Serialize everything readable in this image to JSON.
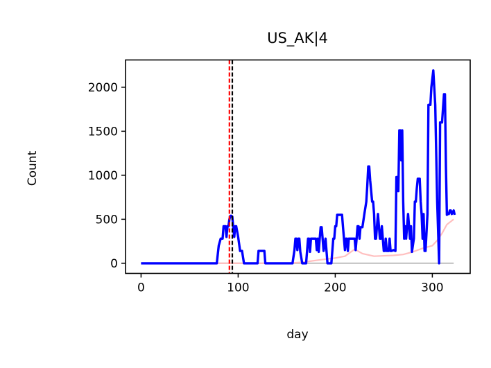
{
  "chart_data": {
    "type": "line",
    "title": "US_AK|4",
    "xlabel": "day",
    "ylabel": "Count",
    "xlim": [
      -16,
      339
    ],
    "ylim": [
      -115,
      2310
    ],
    "xticks": [
      0,
      100,
      200,
      300
    ],
    "yticks": [
      0,
      500,
      1000,
      1500,
      2000
    ],
    "grid": false,
    "vlines": [
      {
        "x": 91,
        "color": "#ff0000",
        "style": "dashed"
      },
      {
        "x": 94,
        "color": "#000000",
        "style": "dashed"
      }
    ],
    "series": [
      {
        "color": "#c8c8c8",
        "points": [
          [
            0,
            0
          ],
          [
            322,
            0
          ]
        ]
      },
      {
        "color": "#ffbfbf",
        "points": [
          [
            0,
            0
          ],
          [
            150,
            0
          ],
          [
            165,
            10
          ],
          [
            185,
            40
          ],
          [
            200,
            60
          ],
          [
            210,
            80
          ],
          [
            215,
            120
          ],
          [
            220,
            160
          ],
          [
            228,
            110
          ],
          [
            240,
            80
          ],
          [
            260,
            90
          ],
          [
            270,
            100
          ],
          [
            280,
            130
          ],
          [
            290,
            170
          ],
          [
            300,
            200
          ],
          [
            305,
            260
          ],
          [
            310,
            340
          ],
          [
            315,
            440
          ],
          [
            322,
            500
          ]
        ]
      },
      {
        "color": "#0000ff",
        "points": [
          [
            0,
            0
          ],
          [
            78,
            0
          ],
          [
            80,
            200
          ],
          [
            82,
            280
          ],
          [
            84,
            280
          ],
          [
            85,
            420
          ],
          [
            87,
            420
          ],
          [
            88,
            300
          ],
          [
            89,
            420
          ],
          [
            90,
            420
          ],
          [
            91,
            500
          ],
          [
            92,
            540
          ],
          [
            93,
            540
          ],
          [
            94,
            530
          ],
          [
            95,
            400
          ],
          [
            96,
            300
          ],
          [
            97,
            420
          ],
          [
            98,
            420
          ],
          [
            100,
            300
          ],
          [
            102,
            140
          ],
          [
            104,
            140
          ],
          [
            106,
            0
          ],
          [
            120,
            0
          ],
          [
            121,
            140
          ],
          [
            127,
            140
          ],
          [
            128,
            0
          ],
          [
            156,
            0
          ],
          [
            158,
            150
          ],
          [
            159,
            280
          ],
          [
            160,
            280
          ],
          [
            161,
            150
          ],
          [
            162,
            280
          ],
          [
            163,
            280
          ],
          [
            164,
            130
          ],
          [
            166,
            0
          ],
          [
            170,
            0
          ],
          [
            172,
            280
          ],
          [
            173,
            280
          ],
          [
            174,
            130
          ],
          [
            175,
            280
          ],
          [
            180,
            280
          ],
          [
            181,
            150
          ],
          [
            182,
            280
          ],
          [
            183,
            130
          ],
          [
            184,
            280
          ],
          [
            185,
            410
          ],
          [
            186,
            410
          ],
          [
            187,
            280
          ],
          [
            188,
            140
          ],
          [
            190,
            280
          ],
          [
            191,
            140
          ],
          [
            192,
            0
          ],
          [
            196,
            0
          ],
          [
            197,
            140
          ],
          [
            198,
            280
          ],
          [
            199,
            280
          ],
          [
            200,
            420
          ],
          [
            201,
            420
          ],
          [
            202,
            550
          ],
          [
            207,
            550
          ],
          [
            208,
            410
          ],
          [
            209,
            280
          ],
          [
            210,
            150
          ],
          [
            211,
            280
          ],
          [
            212,
            280
          ],
          [
            213,
            140
          ],
          [
            214,
            280
          ],
          [
            220,
            280
          ],
          [
            221,
            150
          ],
          [
            222,
            280
          ],
          [
            223,
            420
          ],
          [
            224,
            420
          ],
          [
            225,
            280
          ],
          [
            226,
            410
          ],
          [
            228,
            410
          ],
          [
            230,
            560
          ],
          [
            232,
            700
          ],
          [
            233,
            880
          ],
          [
            234,
            1100
          ],
          [
            235,
            1100
          ],
          [
            236,
            940
          ],
          [
            237,
            820
          ],
          [
            238,
            700
          ],
          [
            239,
            700
          ],
          [
            240,
            560
          ],
          [
            241,
            280
          ],
          [
            242,
            280
          ],
          [
            243,
            420
          ],
          [
            244,
            560
          ],
          [
            245,
            420
          ],
          [
            246,
            280
          ],
          [
            247,
            280
          ],
          [
            248,
            420
          ],
          [
            249,
            280
          ],
          [
            250,
            140
          ],
          [
            251,
            140
          ],
          [
            252,
            280
          ],
          [
            253,
            140
          ],
          [
            255,
            140
          ],
          [
            256,
            280
          ],
          [
            257,
            140
          ],
          [
            258,
            140
          ],
          [
            260,
            150
          ],
          [
            262,
            140
          ],
          [
            263,
            980
          ],
          [
            264,
            980
          ],
          [
            265,
            820
          ],
          [
            266,
            1510
          ],
          [
            267,
            1510
          ],
          [
            268,
            1170
          ],
          [
            269,
            1510
          ],
          [
            270,
            700
          ],
          [
            271,
            280
          ],
          [
            272,
            420
          ],
          [
            273,
            280
          ],
          [
            274,
            420
          ],
          [
            275,
            560
          ],
          [
            276,
            420
          ],
          [
            277,
            280
          ],
          [
            278,
            420
          ],
          [
            279,
            130
          ],
          [
            281,
            280
          ],
          [
            282,
            700
          ],
          [
            283,
            700
          ],
          [
            284,
            850
          ],
          [
            285,
            960
          ],
          [
            287,
            960
          ],
          [
            288,
            700
          ],
          [
            289,
            550
          ],
          [
            290,
            280
          ],
          [
            291,
            560
          ],
          [
            292,
            140
          ],
          [
            293,
            140
          ],
          [
            295,
            560
          ],
          [
            296,
            1800
          ],
          [
            298,
            1800
          ],
          [
            299,
            2000
          ],
          [
            301,
            2190
          ],
          [
            303,
            1800
          ],
          [
            305,
            700
          ],
          [
            307,
            0
          ],
          [
            308,
            1600
          ],
          [
            310,
            1600
          ],
          [
            312,
            1920
          ],
          [
            313,
            1920
          ],
          [
            314,
            1100
          ],
          [
            315,
            550
          ],
          [
            316,
            560
          ],
          [
            317,
            560
          ],
          [
            318,
            600
          ],
          [
            319,
            600
          ],
          [
            320,
            560
          ],
          [
            322,
            600
          ],
          [
            323,
            550
          ]
        ]
      }
    ]
  }
}
